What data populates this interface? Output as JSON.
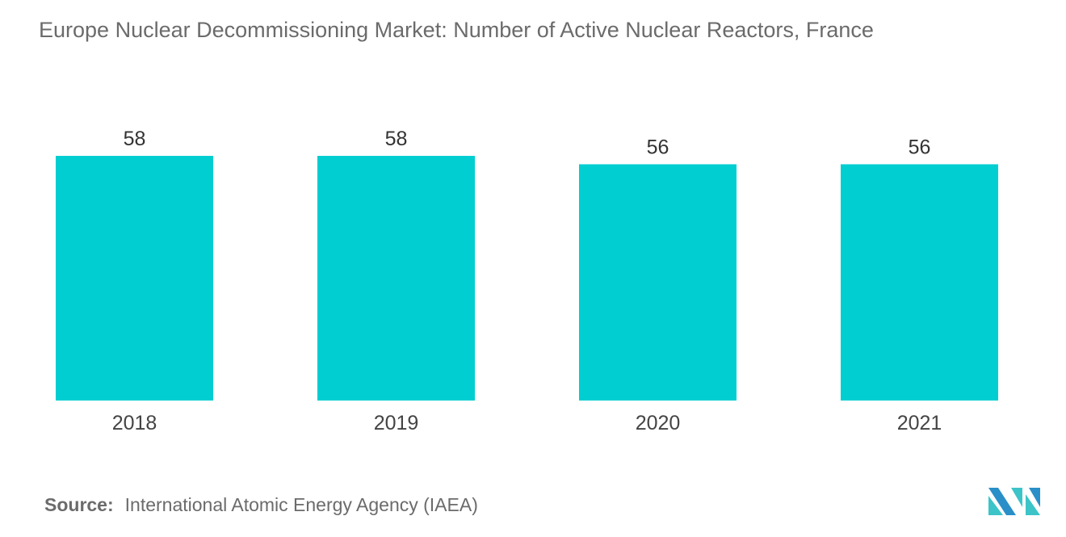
{
  "chart_data": {
    "type": "bar",
    "title": "Europe Nuclear Decommissioning Market: Number of Active Nuclear Reactors, France",
    "categories": [
      "2018",
      "2019",
      "2020",
      "2021"
    ],
    "values": [
      58,
      58,
      56,
      56
    ],
    "xlabel": "",
    "ylabel": "",
    "ylim": [
      0,
      58
    ],
    "grid": false,
    "legend": "none",
    "bar_color": "#00ced1"
  },
  "source": {
    "label": "Source:",
    "text": "International Atomic Energy Agency (IAEA)"
  },
  "logo": {
    "text": "MI",
    "colors": [
      "#2a8fc8",
      "#3cc4c8"
    ]
  }
}
